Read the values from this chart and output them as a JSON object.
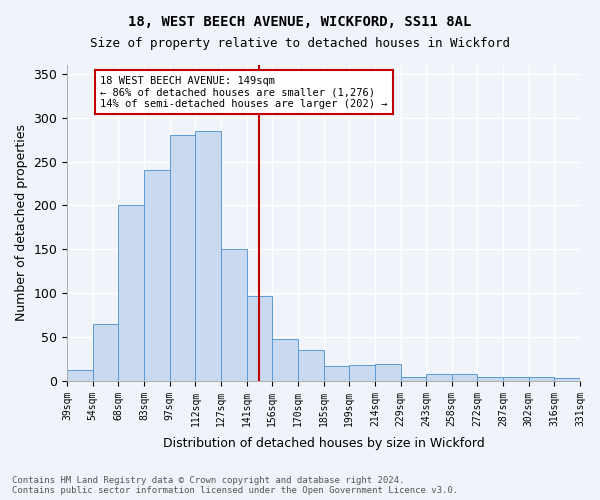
{
  "title": "18, WEST BEECH AVENUE, WICKFORD, SS11 8AL",
  "subtitle": "Size of property relative to detached houses in Wickford",
  "xlabel": "Distribution of detached houses by size in Wickford",
  "ylabel": "Number of detached properties",
  "footnote": "Contains HM Land Registry data © Crown copyright and database right 2024.\nContains public sector information licensed under the Open Government Licence v3.0.",
  "bin_labels": [
    "39sqm",
    "54sqm",
    "68sqm",
    "83sqm",
    "97sqm",
    "112sqm",
    "127sqm",
    "141sqm",
    "156sqm",
    "170sqm",
    "185sqm",
    "199sqm",
    "214sqm",
    "229sqm",
    "243sqm",
    "258sqm",
    "272sqm",
    "287sqm",
    "302sqm",
    "316sqm",
    "331sqm"
  ],
  "bar_heights": [
    12,
    65,
    200,
    240,
    280,
    285,
    150,
    97,
    48,
    35,
    17,
    18,
    19,
    5,
    8,
    8,
    5,
    5,
    4,
    3
  ],
  "bar_color": "#c8d9f0",
  "bar_edgecolor": "#5b9bd5",
  "vline_x": 7.5,
  "vline_color": "#c00000",
  "annotation_text": "18 WEST BEECH AVENUE: 149sqm\n← 86% of detached houses are smaller (1,276)\n14% of semi-detached houses are larger (202) →",
  "annotation_box_color": "#c00000",
  "annotation_fill": "white",
  "ylim": [
    0,
    360
  ],
  "yticks": [
    0,
    50,
    100,
    150,
    200,
    250,
    300,
    350
  ],
  "background_color": "#f0f4fa",
  "grid_color": "white"
}
